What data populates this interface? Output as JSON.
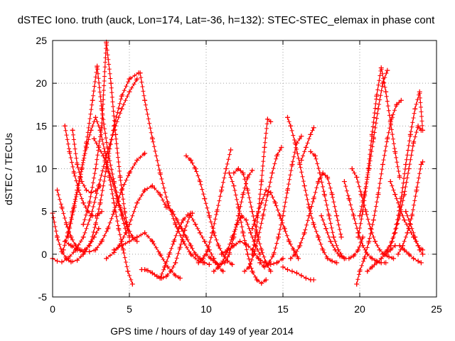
{
  "chart_data": {
    "type": "scatter",
    "title": "dSTEC Iono. truth (auck, Lon=174, Lat=-36, h=132): STEC-STEC_elemax in phase cont",
    "xlabel": "GPS time / hours of day 149 of year 2014",
    "ylabel": "dSTEC  / TECUs",
    "xlim": [
      0,
      25
    ],
    "ylim": [
      -5,
      25
    ],
    "xticks": [
      0,
      5,
      10,
      15,
      20,
      25
    ],
    "yticks": [
      -5,
      0,
      5,
      10,
      15,
      20,
      25
    ],
    "xtick_labels": [
      "0",
      "5",
      "10",
      "15",
      "20",
      "25"
    ],
    "ytick_labels": [
      "-5",
      "0",
      "5",
      "10",
      "15",
      "20",
      "25"
    ],
    "grid": true,
    "legend": "none",
    "marker": "plus",
    "color": "#ff0000",
    "series": [
      {
        "x": [
          0.0,
          0.3,
          0.6,
          0.9,
          1.2,
          1.6,
          2.0,
          2.5,
          2.8,
          3.1,
          3.5,
          4.0,
          4.5,
          5.0,
          5.6
        ],
        "values": [
          4.8,
          2.0,
          0.3,
          -0.5,
          -0.9,
          -0.7,
          0.0,
          1.5,
          3.5,
          6.0,
          10.0,
          15.0,
          18.5,
          20.5,
          21.2
        ]
      },
      {
        "x": [
          0.0,
          0.3,
          0.6,
          1.0,
          1.5,
          2.0,
          2.5,
          3.0,
          3.5,
          4.0,
          4.5,
          5.0,
          5.5
        ],
        "values": [
          -0.5,
          -0.8,
          -0.9,
          -0.5,
          0.5,
          2.0,
          4.5,
          8.0,
          11.5,
          14.5,
          17.0,
          19.0,
          20.5
        ]
      },
      {
        "x": [
          0.3,
          0.6,
          0.9,
          1.2,
          1.5,
          1.8,
          2.1,
          2.4,
          2.7,
          3.0
        ],
        "values": [
          7.5,
          5.5,
          3.5,
          2.0,
          1.0,
          0.5,
          0.5,
          1.0,
          2.0,
          3.0
        ]
      },
      {
        "x": [
          0.8,
          1.1,
          1.4,
          1.7,
          2.0,
          2.3,
          2.6,
          2.9,
          3.2
        ],
        "values": [
          15.0,
          12.0,
          9.5,
          7.5,
          6.0,
          5.0,
          4.5,
          4.5,
          5.0
        ]
      },
      {
        "x": [
          1.3,
          1.6,
          1.9,
          2.2,
          2.5,
          2.8,
          3.1
        ],
        "values": [
          14.5,
          10.5,
          8.5,
          7.5,
          7.2,
          7.4,
          8.0
        ]
      },
      {
        "x": [
          0.7,
          1.0,
          1.3,
          1.6,
          1.9,
          2.2,
          2.5,
          2.8,
          3.1,
          3.4,
          3.7,
          4.0,
          4.3,
          4.6,
          4.9,
          5.2
        ],
        "values": [
          0.5,
          2.5,
          5.0,
          7.5,
          10.0,
          12.5,
          14.5,
          16.0,
          14.5,
          12.0,
          9.0,
          6.0,
          3.0,
          0.5,
          -2.0,
          -3.5
        ]
      },
      {
        "x": [
          1.0,
          1.4,
          1.8,
          2.2,
          2.6,
          2.9,
          3.2,
          3.6,
          4.0,
          4.4,
          4.8,
          5.2,
          5.5
        ],
        "values": [
          2.0,
          5.5,
          9.0,
          13.0,
          18.0,
          22.0,
          17.0,
          12.0,
          8.5,
          5.5,
          3.5,
          2.0,
          1.5
        ]
      },
      {
        "x": [
          2.0,
          2.4,
          2.8,
          3.2,
          3.5,
          3.8,
          4.1,
          4.4,
          4.7,
          5.0
        ],
        "values": [
          3.5,
          6.0,
          10.0,
          15.0,
          24.8,
          20.0,
          14.0,
          9.0,
          5.0,
          2.0
        ]
      },
      {
        "x": [
          2.7,
          3.0,
          3.3,
          3.6,
          3.9,
          4.2,
          4.5,
          4.8
        ],
        "values": [
          13.5,
          12.5,
          11.5,
          10.0,
          8.5,
          6.5,
          4.5,
          2.5
        ]
      },
      {
        "x": [
          0.8,
          1.2,
          1.6,
          2.0,
          2.4,
          2.8,
          3.2,
          3.6,
          4.0,
          4.5,
          5.0,
          5.5,
          6.0
        ],
        "values": [
          1.5,
          1.0,
          0.5,
          0.3,
          0.3,
          0.5,
          1.5,
          3.0,
          5.0,
          7.5,
          9.5,
          11.0,
          11.8
        ]
      },
      {
        "x": [
          4.0,
          4.5,
          5.0,
          5.5,
          6.0,
          6.5,
          7.0,
          7.5,
          8.0,
          8.3
        ],
        "values": [
          0.5,
          1.0,
          1.5,
          2.0,
          2.5,
          1.5,
          0.0,
          -1.5,
          -2.5,
          -2.8
        ]
      },
      {
        "x": [
          3.5,
          4.0,
          4.5,
          5.0,
          5.5,
          6.0,
          6.5,
          7.0,
          7.4
        ],
        "values": [
          -0.5,
          0.2,
          1.5,
          3.5,
          6.0,
          7.5,
          8.0,
          7.0,
          5.5
        ]
      },
      {
        "x": [
          5.7,
          6.0,
          6.5,
          7.0,
          7.5,
          8.0,
          8.5,
          9.0,
          9.5,
          9.8
        ],
        "values": [
          21.2,
          18.0,
          13.5,
          9.5,
          6.0,
          3.5,
          1.5,
          0.0,
          -0.8,
          -1.0
        ]
      },
      {
        "x": [
          5.8,
          6.0,
          6.2,
          6.5,
          6.8,
          7.1,
          7.4,
          7.7,
          8.0,
          8.3,
          8.6,
          9.0
        ],
        "values": [
          -1.8,
          -1.8,
          -1.9,
          -2.2,
          -2.6,
          -2.8,
          -2.6,
          -2.0,
          -1.0,
          0.8,
          2.8,
          4.8
        ]
      },
      {
        "x": [
          7.0,
          7.3,
          7.6,
          7.9,
          8.2,
          8.5,
          8.8,
          9.1
        ],
        "values": [
          -2.8,
          -1.5,
          0.0,
          1.5,
          3.0,
          4.0,
          4.6,
          4.8
        ]
      },
      {
        "x": [
          7.5,
          7.8,
          8.1,
          8.4,
          8.7,
          9.0,
          9.3,
          9.6,
          9.9,
          10.2
        ],
        "values": [
          5.5,
          5.0,
          4.0,
          3.0,
          2.0,
          1.0,
          0.0,
          -0.5,
          -1.0,
          -1.2
        ]
      },
      {
        "x": [
          8.7,
          9.0,
          9.3,
          9.6,
          9.9,
          10.2,
          10.5,
          10.8,
          11.1,
          11.4,
          11.7
        ],
        "values": [
          11.5,
          11.0,
          10.0,
          8.5,
          6.5,
          4.5,
          2.5,
          1.0,
          0.0,
          -0.8,
          -1.2
        ]
      },
      {
        "x": [
          9.0,
          9.3,
          9.6,
          9.9,
          10.2,
          10.5,
          10.8,
          11.1
        ],
        "values": [
          4.5,
          3.5,
          2.5,
          1.5,
          0.5,
          -0.5,
          -1.5,
          -2.0
        ]
      },
      {
        "x": [
          9.5,
          9.8,
          10.1,
          10.4,
          10.7,
          11.0,
          11.3,
          11.6
        ],
        "values": [
          -1.0,
          -0.5,
          0.5,
          2.5,
          5.0,
          7.5,
          10.0,
          12.2
        ]
      },
      {
        "x": [
          10.0,
          10.3,
          10.6,
          10.9,
          11.2,
          11.5,
          11.8,
          12.1,
          12.4,
          12.7,
          13.0
        ],
        "values": [
          0.0,
          -0.5,
          -1.0,
          -1.2,
          -1.0,
          0.0,
          2.0,
          4.5,
          7.0,
          9.0,
          9.8
        ]
      },
      {
        "x": [
          10.5,
          10.8,
          11.1,
          11.4,
          11.7,
          12.0,
          12.3,
          12.6,
          12.9,
          13.2,
          13.5
        ],
        "values": [
          -2.0,
          -1.5,
          -0.8,
          0.5,
          2.0,
          3.5,
          4.5,
          4.0,
          2.5,
          1.0,
          0.0
        ]
      },
      {
        "x": [
          11.0,
          11.4,
          11.8,
          12.2,
          12.6,
          13.0,
          13.4,
          13.8,
          14.2,
          14.6,
          15.0
        ],
        "values": [
          0.0,
          0.5,
          1.0,
          1.5,
          1.2,
          0.5,
          -0.5,
          -1.0,
          -1.2,
          -1.0,
          -0.5
        ]
      },
      {
        "x": [
          11.5,
          11.8,
          12.1,
          12.4,
          12.7,
          13.0,
          13.3,
          13.6,
          13.9
        ],
        "values": [
          9.5,
          8.0,
          5.5,
          2.5,
          0.0,
          -2.0,
          -3.0,
          -3.4,
          -3.0
        ]
      },
      {
        "x": [
          11.8,
          12.1,
          12.4,
          12.7,
          13.0,
          13.3,
          13.6,
          13.9,
          14.2
        ],
        "values": [
          9.5,
          10.0,
          9.5,
          7.5,
          5.0,
          2.5,
          0.5,
          -1.0,
          -2.0
        ]
      },
      {
        "x": [
          12.5,
          12.8,
          13.1,
          13.4,
          13.7,
          14.0,
          14.3,
          14.6,
          14.9
        ],
        "values": [
          -2.0,
          -1.5,
          0.0,
          2.0,
          4.5,
          7.0,
          9.5,
          11.5,
          12.5
        ]
      },
      {
        "x": [
          13.0,
          13.2,
          13.4,
          13.6,
          13.8,
          14.0,
          14.2
        ],
        "values": [
          0.0,
          2.0,
          5.0,
          8.5,
          12.5,
          15.8,
          15.5
        ]
      },
      {
        "x": [
          13.0,
          13.3,
          13.6,
          13.9,
          14.2,
          14.5,
          14.8,
          15.1,
          15.4,
          15.7,
          16.0
        ],
        "values": [
          3.0,
          4.5,
          6.0,
          7.5,
          7.2,
          6.0,
          4.5,
          3.0,
          1.5,
          0.5,
          -0.5
        ]
      },
      {
        "x": [
          13.5,
          13.8,
          14.1,
          14.4,
          14.7,
          15.0,
          15.3,
          15.6,
          15.9,
          16.2
        ],
        "values": [
          -1.0,
          -1.5,
          -1.0,
          0.0,
          2.0,
          4.5,
          7.5,
          10.5,
          13.0,
          13.8
        ]
      },
      {
        "x": [
          15.3,
          15.5,
          15.8,
          16.1,
          16.4,
          16.7,
          17.0,
          17.3,
          17.6,
          17.9,
          18.2,
          18.5
        ],
        "values": [
          16.0,
          15.0,
          13.0,
          10.5,
          8.0,
          5.5,
          3.5,
          2.0,
          0.5,
          -0.5,
          -0.8,
          -1.0
        ]
      },
      {
        "x": [
          15.5,
          15.8,
          16.1,
          16.4,
          16.7,
          17.0,
          17.3,
          17.6,
          17.9,
          18.2,
          18.5,
          18.8
        ],
        "values": [
          -0.5,
          0.0,
          1.0,
          2.5,
          4.5,
          6.5,
          8.5,
          9.5,
          9.0,
          7.0,
          4.5,
          2.0
        ]
      },
      {
        "x": [
          15.0,
          15.3,
          15.6,
          15.9,
          16.2,
          16.5,
          16.8,
          17.0
        ],
        "values": [
          -1.5,
          -1.8,
          -2.0,
          -2.2,
          -2.5,
          -2.8,
          -3.0,
          -3.0
        ]
      },
      {
        "x": [
          16.2,
          16.5,
          16.8,
          17.0
        ],
        "values": [
          11.0,
          12.5,
          14.0,
          14.8
        ]
      },
      {
        "x": [
          16.8,
          17.1,
          17.4,
          17.7,
          18.0,
          18.3,
          18.6,
          19.0
        ],
        "values": [
          12.0,
          11.5,
          9.5,
          7.0,
          4.5,
          2.0,
          0.5,
          -0.5
        ]
      },
      {
        "x": [
          17.5,
          17.8,
          18.1,
          18.4,
          18.7,
          19.0,
          19.3,
          19.6,
          19.9,
          20.2
        ],
        "values": [
          4.5,
          3.0,
          1.5,
          0.5,
          -0.2,
          -0.5,
          -0.5,
          -0.2,
          0.5,
          2.0
        ]
      },
      {
        "x": [
          19.0,
          19.3,
          19.6,
          19.9,
          20.2,
          20.5,
          20.8,
          21.1,
          21.4,
          21.7
        ],
        "values": [
          8.5,
          6.5,
          4.5,
          2.5,
          1.0,
          0.0,
          -0.5,
          -0.8,
          -1.0,
          -1.0
        ]
      },
      {
        "x": [
          19.5,
          19.8,
          20.1,
          20.4,
          20.7,
          21.0,
          21.3,
          21.6,
          21.9,
          22.2
        ],
        "values": [
          10.0,
          9.0,
          7.0,
          5.0,
          3.0,
          1.5,
          0.5,
          0.0,
          -0.3,
          -0.5
        ]
      },
      {
        "x": [
          19.8,
          20.0,
          20.3,
          20.6,
          20.9,
          21.2,
          21.5,
          21.8,
          22.1,
          22.4,
          22.7
        ],
        "values": [
          -3.5,
          -2.0,
          -0.5,
          1.5,
          4.0,
          7.0,
          10.5,
          13.5,
          16.0,
          17.5,
          18.0
        ]
      },
      {
        "x": [
          19.9,
          20.2,
          20.5,
          20.8,
          21.1,
          21.4,
          21.7,
          22.0,
          22.3,
          22.6
        ],
        "values": [
          2.0,
          5.0,
          9.0,
          14.0,
          18.5,
          21.8,
          19.0,
          15.5,
          12.0,
          9.0
        ]
      },
      {
        "x": [
          20.0,
          20.3,
          20.6,
          20.9,
          21.2,
          21.5,
          21.8
        ],
        "values": [
          4.5,
          7.0,
          10.0,
          13.5,
          17.0,
          20.0,
          21.5
        ]
      },
      {
        "x": [
          20.5,
          20.8,
          21.1,
          21.4,
          21.7,
          22.0,
          22.3,
          22.6,
          22.9,
          23.2,
          23.5,
          23.8,
          24.0
        ],
        "values": [
          -2.0,
          -1.5,
          -1.0,
          -0.5,
          0.0,
          0.5,
          1.0,
          1.0,
          0.5,
          0.0,
          -0.5,
          -0.8,
          -1.0
        ]
      },
      {
        "x": [
          21.5,
          21.8,
          22.1,
          22.4,
          22.7,
          23.0,
          23.3,
          23.6,
          23.9,
          24.1
        ],
        "values": [
          0.0,
          0.5,
          1.5,
          3.5,
          6.5,
          10.5,
          14.0,
          17.0,
          19.0,
          14.5
        ]
      },
      {
        "x": [
          22.0,
          22.3,
          22.6,
          22.9,
          23.2,
          23.5,
          23.8,
          24.0
        ],
        "values": [
          1.0,
          2.5,
          4.5,
          7.0,
          10.0,
          13.0,
          15.0,
          14.5
        ]
      },
      {
        "x": [
          22.0,
          22.3,
          22.6,
          22.9,
          23.2,
          23.5,
          23.8,
          24.1
        ],
        "values": [
          8.5,
          7.0,
          5.5,
          4.0,
          3.0,
          2.0,
          1.0,
          0.5
        ]
      },
      {
        "x": [
          22.5,
          22.8,
          23.1,
          23.4,
          23.7,
          24.0,
          24.1
        ],
        "values": [
          0.0,
          1.0,
          2.5,
          4.5,
          7.5,
          10.5,
          10.8
        ]
      },
      {
        "x": [
          23.0,
          23.3,
          23.6,
          23.9,
          24.1
        ],
        "values": [
          5.0,
          3.5,
          2.0,
          0.5,
          0.0
        ]
      }
    ]
  }
}
